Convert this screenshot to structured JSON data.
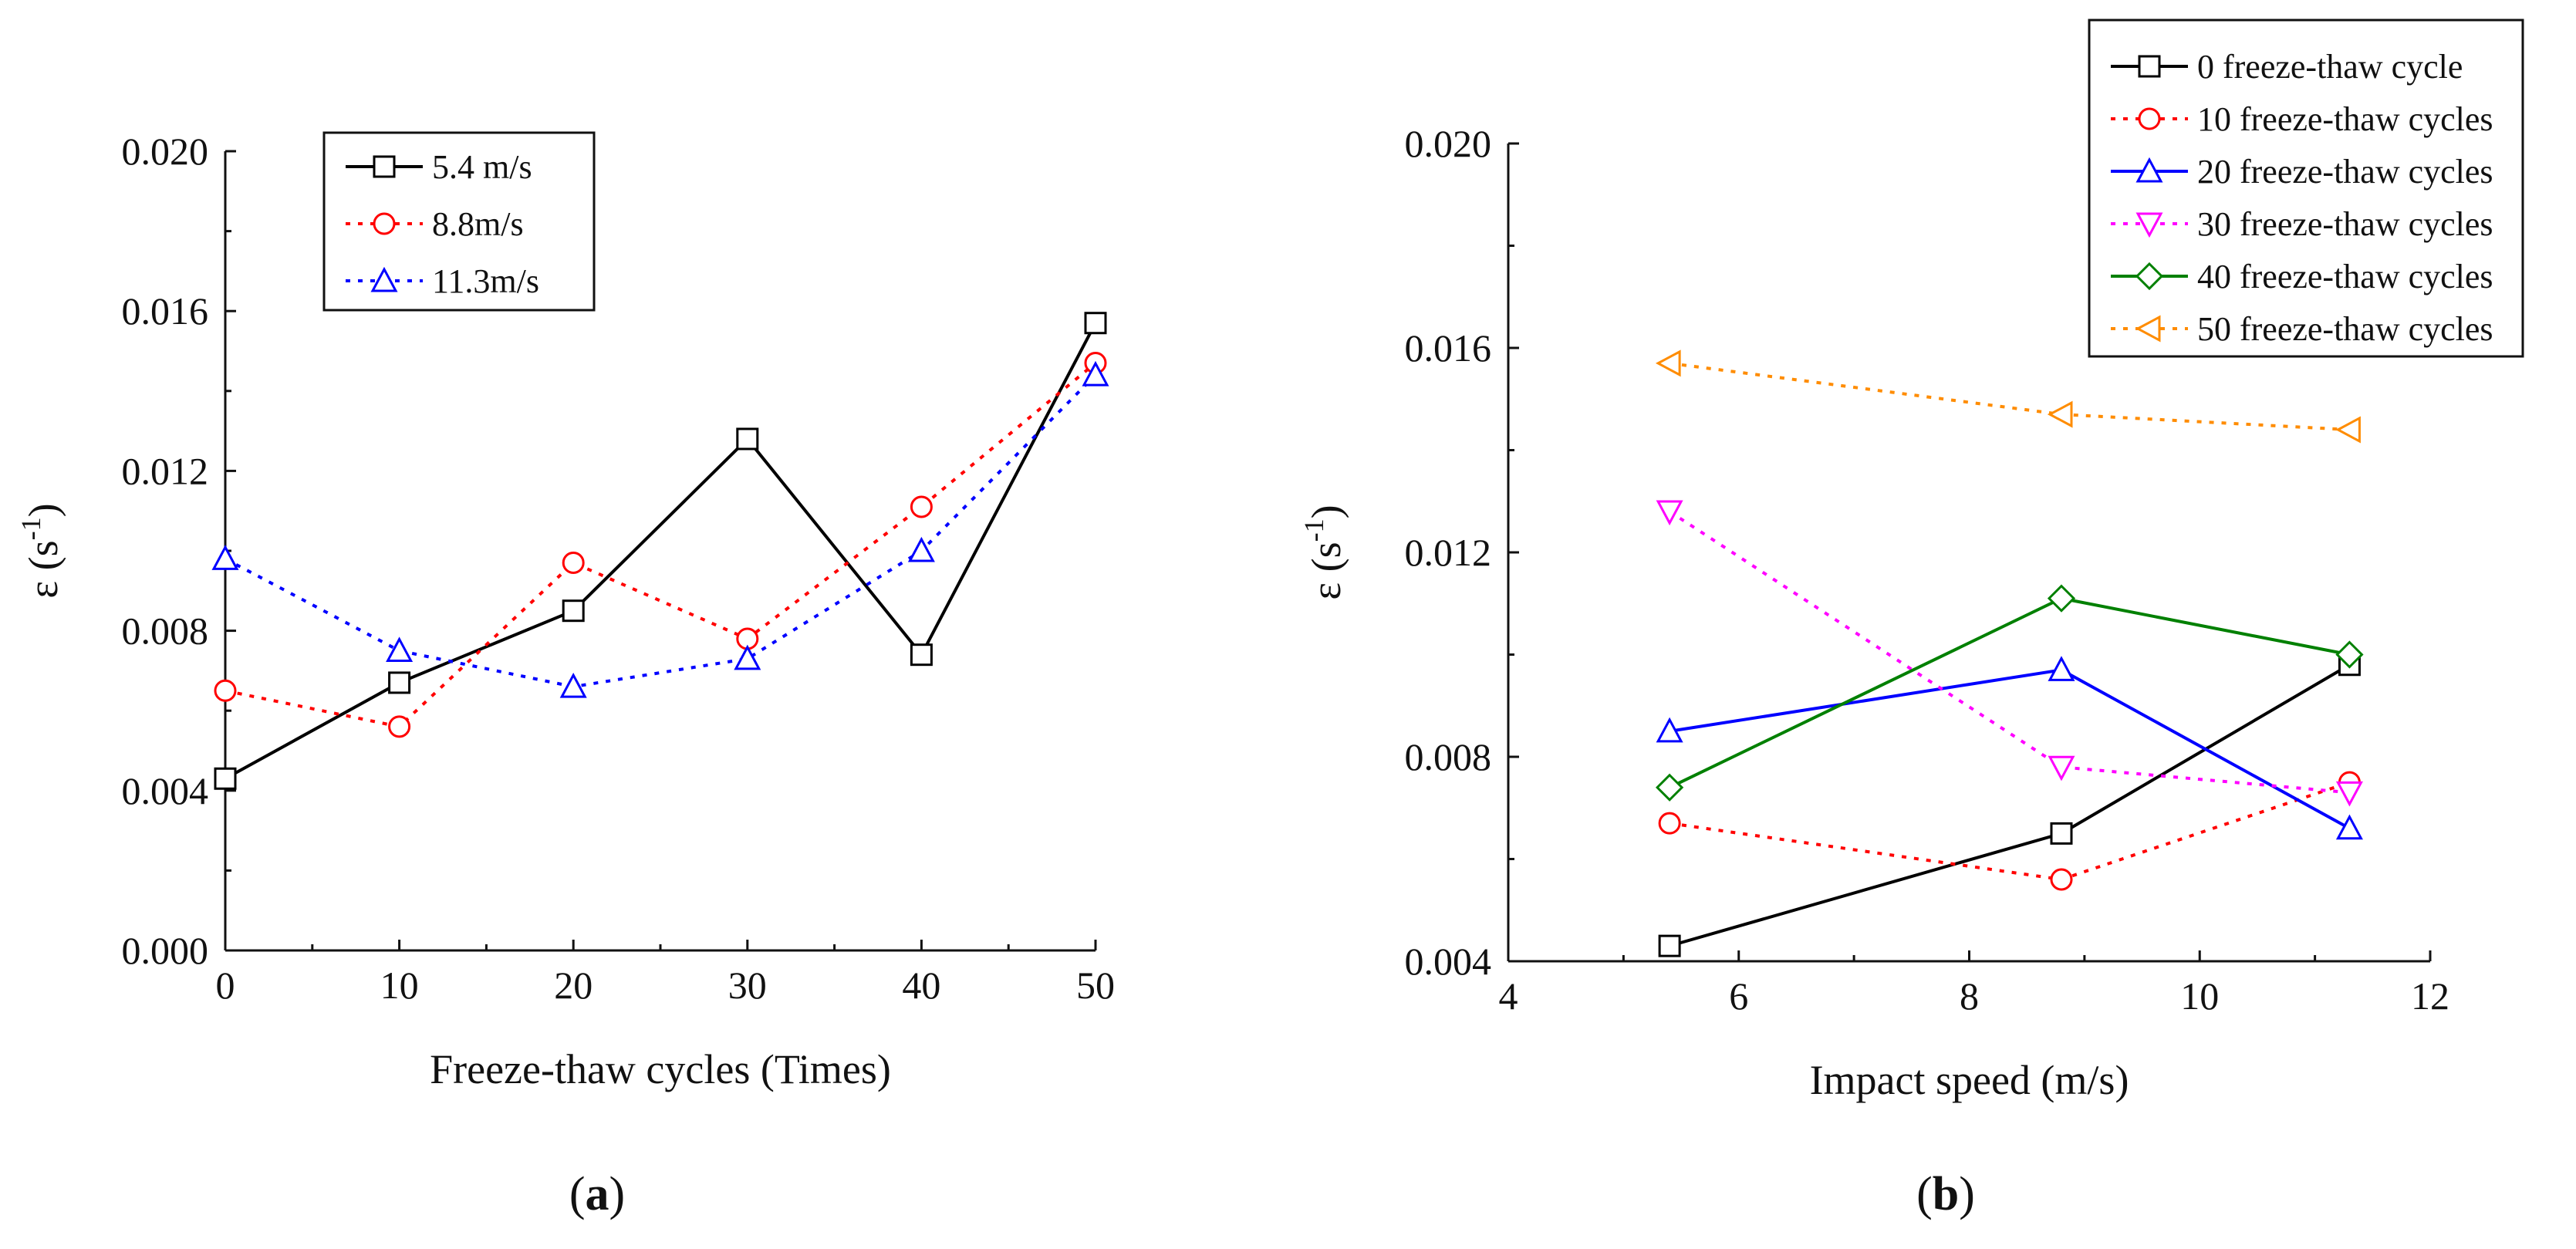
{
  "chart_data": [
    {
      "type": "line",
      "panel_label": "a",
      "title": "",
      "xlabel": "Freeze-thaw cycles (Times)",
      "ylabel": "ε (s⁻¹)",
      "ylabel_main": "ε",
      "ylabel_unit": "s",
      "ylabel_exp": "-1",
      "xlim": [
        0,
        50
      ],
      "ylim": [
        0.0,
        0.02
      ],
      "xticks": [
        0,
        10,
        20,
        30,
        40,
        50
      ],
      "yticks": [
        "0.000",
        "0.004",
        "0.008",
        "0.012",
        "0.016",
        "0.020"
      ],
      "legend_position": "top-left",
      "x": [
        0,
        10,
        20,
        30,
        40,
        50
      ],
      "series": [
        {
          "name": "5.4 m/s",
          "values": [
            0.0043,
            0.0067,
            0.0085,
            0.0128,
            0.0074,
            0.0157
          ],
          "color": "#000000",
          "dash": "solid",
          "marker": "square"
        },
        {
          "name": "8.8m/s",
          "values": [
            0.0065,
            0.0056,
            0.0097,
            0.0078,
            0.0111,
            0.0147
          ],
          "color": "#ff0000",
          "dash": "dotted",
          "marker": "circle"
        },
        {
          "name": "11.3m/s",
          "values": [
            0.0098,
            0.0075,
            0.0066,
            0.0073,
            0.01,
            0.0144
          ],
          "color": "#0000ff",
          "dash": "dotted",
          "marker": "triangle-up"
        }
      ]
    },
    {
      "type": "line",
      "panel_label": "b",
      "title": "",
      "xlabel": "Impact speed (m/s)",
      "ylabel": "ε (s⁻¹)",
      "ylabel_main": "ε",
      "ylabel_unit": "s",
      "ylabel_exp": "-1",
      "xlim": [
        4,
        12
      ],
      "ylim": [
        0.004,
        0.02
      ],
      "xticks": [
        4,
        6,
        8,
        10,
        12
      ],
      "yticks": [
        "0.004",
        "0.008",
        "0.012",
        "0.016",
        "0.020"
      ],
      "legend_position": "top-right",
      "x": [
        5.4,
        8.8,
        11.3
      ],
      "series": [
        {
          "name": "0 freeze-thaw cycle",
          "values": [
            0.0043,
            0.0065,
            0.0098
          ],
          "color": "#000000",
          "dash": "solid",
          "marker": "square"
        },
        {
          "name": "10 freeze-thaw cycles",
          "values": [
            0.0067,
            0.0056,
            0.0075
          ],
          "color": "#ff0000",
          "dash": "dotted",
          "marker": "circle"
        },
        {
          "name": "20 freeze-thaw cycles",
          "values": [
            0.0085,
            0.0097,
            0.0066
          ],
          "color": "#0000ff",
          "dash": "solid",
          "marker": "triangle-up"
        },
        {
          "name": "30 freeze-thaw cycles",
          "values": [
            0.0128,
            0.0078,
            0.0073
          ],
          "color": "#ff00ff",
          "dash": "dotted",
          "marker": "triangle-down"
        },
        {
          "name": "40 freeze-thaw cycles",
          "values": [
            0.0074,
            0.0111,
            0.01
          ],
          "color": "#008000",
          "dash": "solid",
          "marker": "diamond"
        },
        {
          "name": "50 freeze-thaw cycles",
          "values": [
            0.0157,
            0.0147,
            0.0144
          ],
          "color": "#ff8c00",
          "dash": "dotted",
          "marker": "triangle-left"
        }
      ]
    }
  ]
}
